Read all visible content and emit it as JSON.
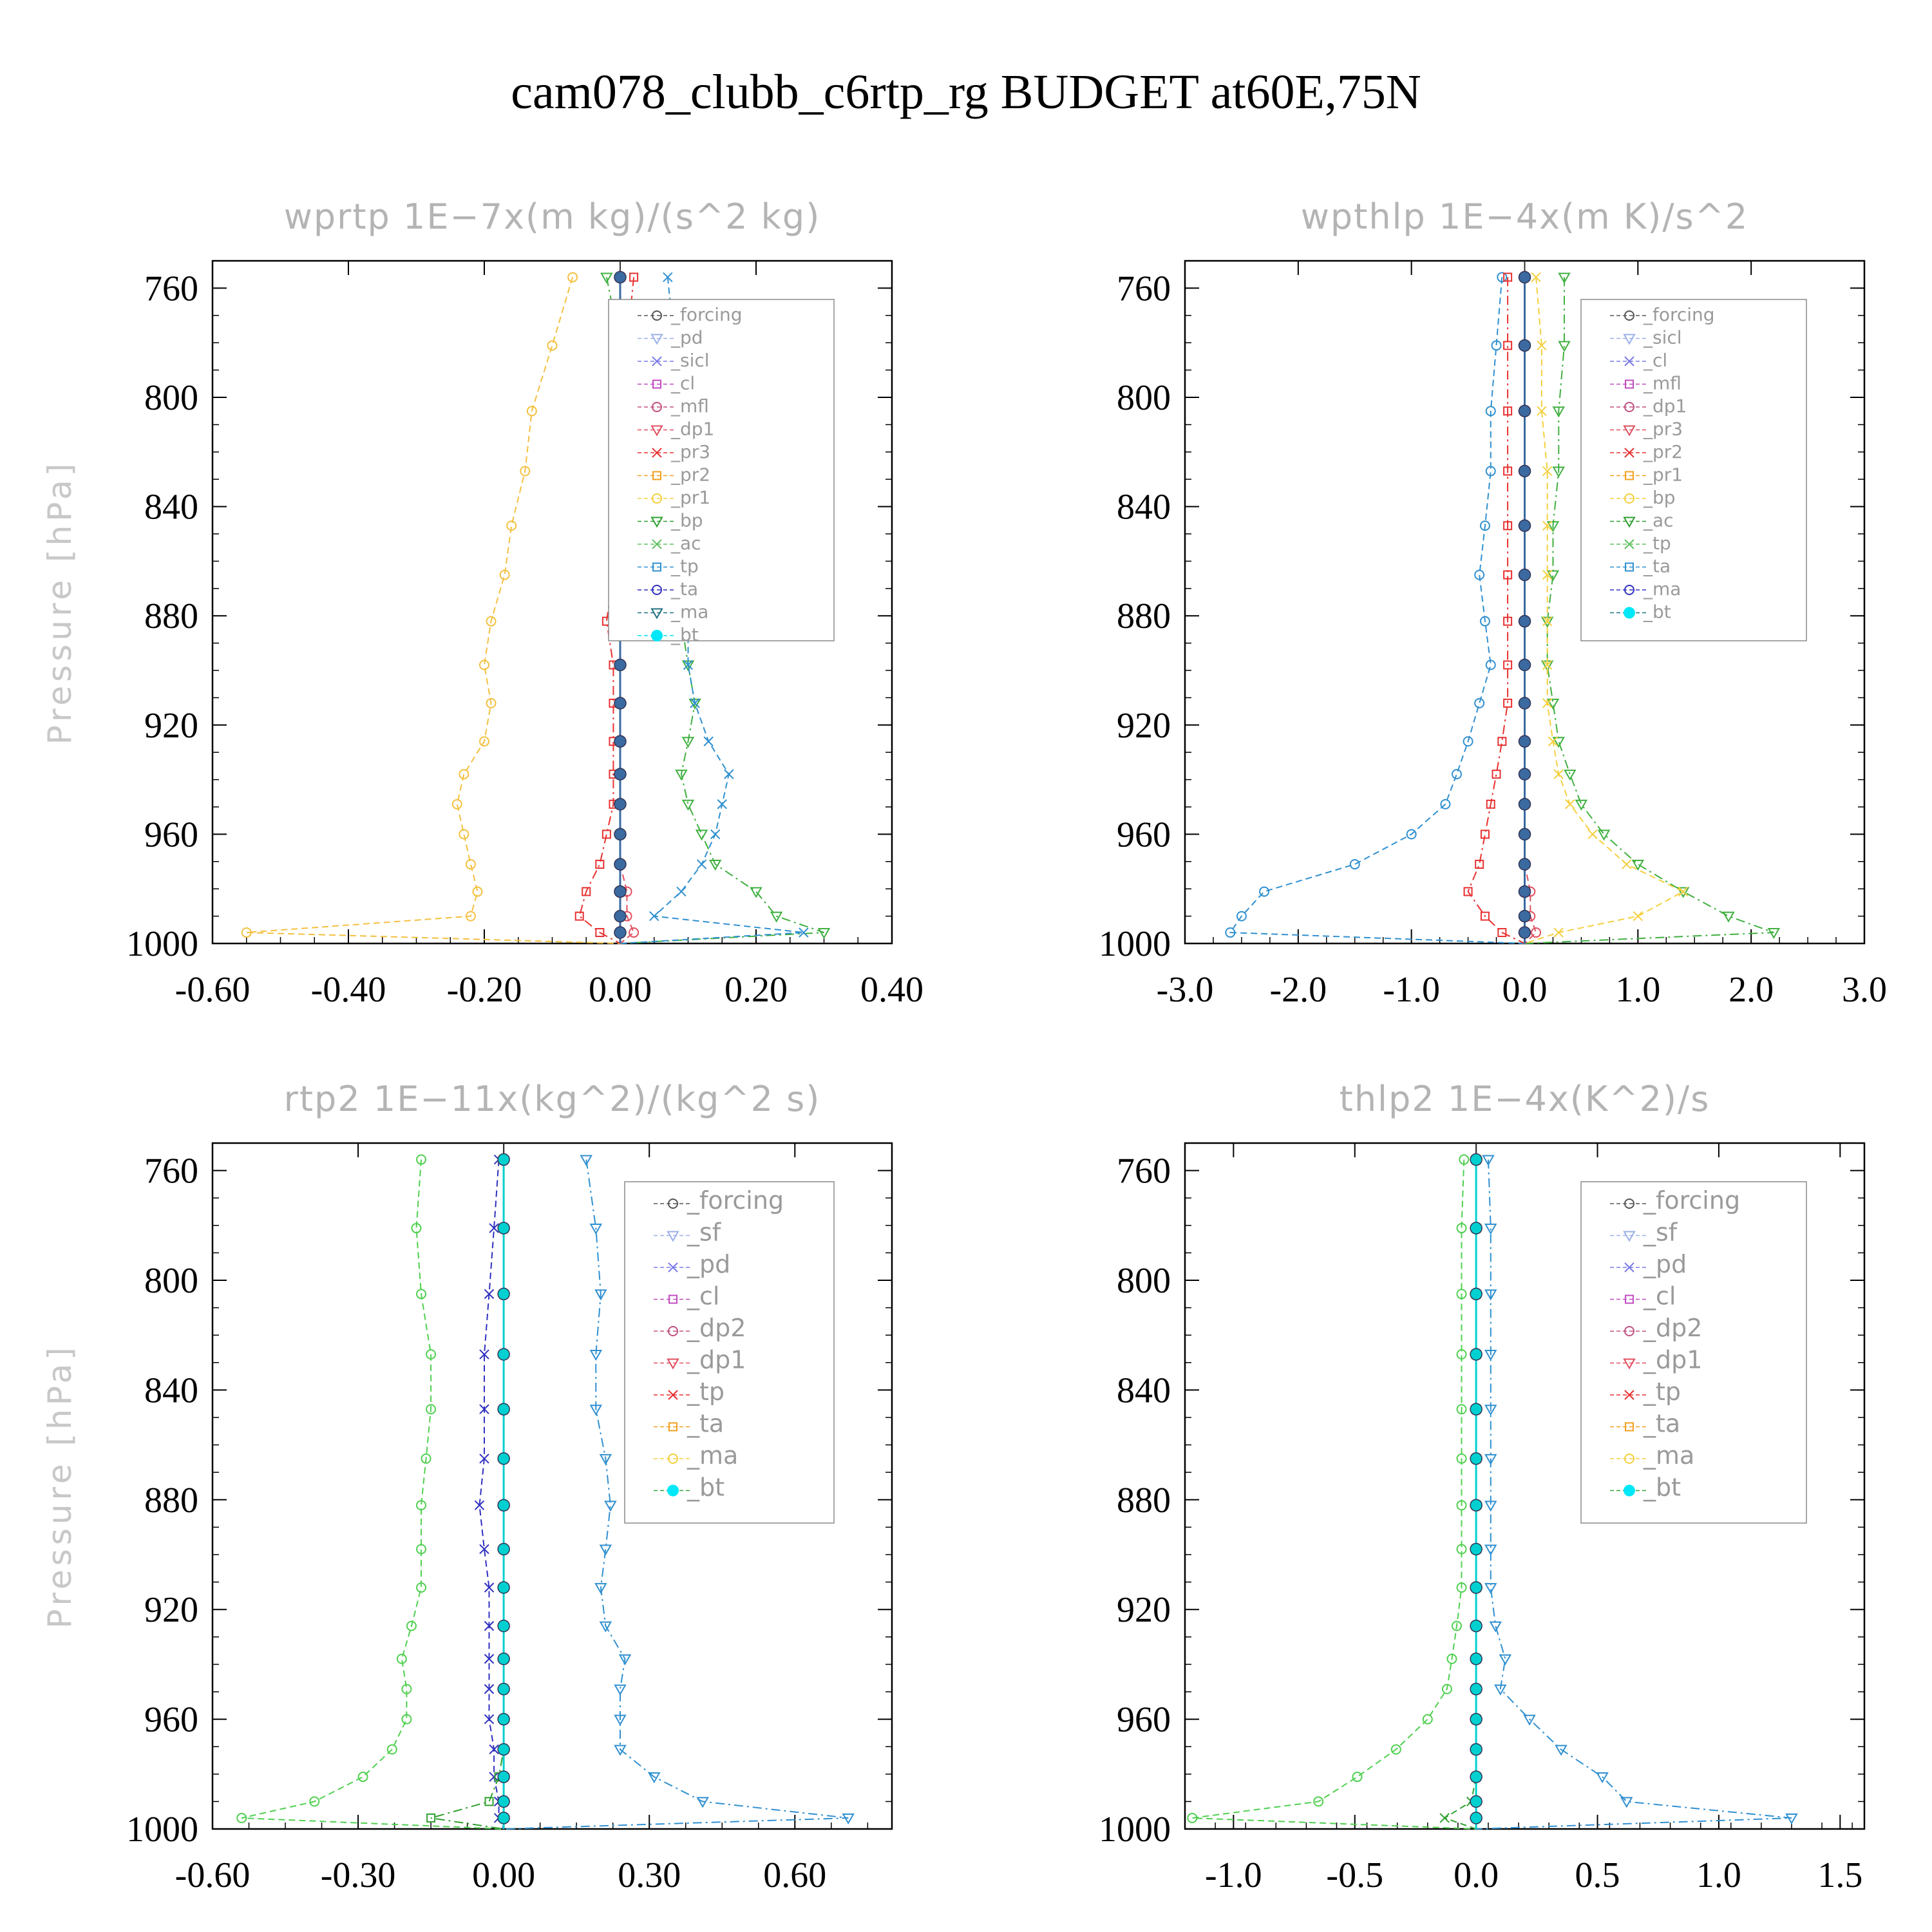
{
  "page_title": "cam078_clubb_c6rtp_rg  BUDGET at60E,75N",
  "colors": {
    "forcing": "#555555",
    "pd": "#9ab0e8",
    "sicl": "#7a7ae8",
    "cl": "#c04cc0",
    "mfl": "#c05080",
    "dp1": "#e05060",
    "pr3": "#e83030",
    "pr2": "#f0a020",
    "pr1": "#f4d040",
    "bp": "#30a030",
    "ac": "#60c060",
    "tp": "#3090d0",
    "ta": "#3030c0",
    "ma": "#207080",
    "bt": "#00e0f0",
    "sf": "#e83030",
    "dp2": "#30a030",
    "dp1b": "#60e060",
    "cl2": "#f4d040",
    "pd2": "#f0a020"
  },
  "chart_data": [
    {
      "type": "line",
      "title": "wprtp   1E−7x(m kg)/(s^2 kg)",
      "ylabel": "Pressure [hPa]",
      "xlim": [
        -0.6,
        0.4
      ],
      "xticks": [
        "-0.60",
        "-0.40",
        "-0.20",
        "0.00",
        "0.20",
        "0.40"
      ],
      "xtick_values": [
        -0.6,
        -0.4,
        -0.2,
        0.0,
        0.2,
        0.4
      ],
      "ylim": [
        750,
        1000
      ],
      "yticks": [
        "760",
        "800",
        "840",
        "880",
        "920",
        "960",
        "1000"
      ],
      "yticks_values": [
        760,
        800,
        840,
        880,
        920,
        960,
        1000
      ],
      "levels": [
        756,
        781,
        805,
        827,
        847,
        865,
        882,
        898,
        912,
        926,
        938,
        949,
        960,
        971,
        981,
        990,
        996,
        1000
      ],
      "legend": [
        "_forcing",
        "_pd",
        "_sicl",
        "_cl",
        "_mfl",
        "_dp1",
        "_pr3",
        "_pr2",
        "_pr1",
        "_bp",
        "_ac",
        "_tp",
        "_ta",
        "_ma",
        "_bt"
      ],
      "series": [
        {
          "name": "_pr2",
          "color": "#f4c040",
          "x": [
            -0.07,
            -0.1,
            -0.13,
            -0.14,
            -0.16,
            -0.17,
            -0.19,
            -0.2,
            -0.19,
            -0.2,
            -0.23,
            -0.24,
            -0.23,
            -0.22,
            -0.21,
            -0.22,
            -0.55,
            0.0
          ]
        },
        {
          "name": "_bp",
          "color": "#40b040",
          "x": [
            -0.02,
            0.0,
            0.02,
            0.04,
            0.06,
            0.08,
            0.09,
            0.1,
            0.11,
            0.1,
            0.09,
            0.1,
            0.12,
            0.14,
            0.2,
            0.23,
            0.3,
            0.0
          ]
        },
        {
          "name": "_tp",
          "color": "#3090d0",
          "x": [
            0.07,
            0.08,
            0.08,
            0.08,
            0.09,
            0.1,
            0.1,
            0.1,
            0.11,
            0.13,
            0.16,
            0.15,
            0.14,
            0.12,
            0.09,
            0.05,
            0.27,
            0.0
          ]
        },
        {
          "name": "_pr3",
          "color": "#e83030",
          "x": [
            0.02,
            0.01,
            0.0,
            0.0,
            -0.01,
            -0.01,
            -0.02,
            -0.01,
            -0.01,
            -0.01,
            -0.01,
            -0.01,
            -0.02,
            -0.03,
            -0.05,
            -0.06,
            -0.03,
            0.0
          ]
        },
        {
          "name": "_dp1",
          "color": "#e05060",
          "x": [
            0.0,
            0.0,
            0.0,
            0.0,
            0.0,
            0.0,
            0.0,
            0.0,
            0.0,
            0.0,
            0.0,
            0.0,
            0.0,
            0.0,
            0.01,
            0.01,
            0.02,
            0.0
          ]
        },
        {
          "name": "_bt",
          "color": "#3a6aa0",
          "x": [
            0,
            0,
            0,
            0,
            0,
            0,
            0,
            0,
            0,
            0,
            0,
            0,
            0,
            0,
            0,
            0,
            0,
            0
          ]
        }
      ]
    },
    {
      "type": "line",
      "title": "wpthlp   1E−4x(m K)/s^2",
      "ylabel": "Pressure [hPa]",
      "xlim": [
        -3.0,
        3.0
      ],
      "xticks": [
        "-3.0",
        "-2.0",
        "-1.0",
        "0.0",
        "1.0",
        "2.0",
        "3.0"
      ],
      "xtick_values": [
        -3.0,
        -2.0,
        -1.0,
        0.0,
        1.0,
        2.0,
        3.0
      ],
      "ylim": [
        750,
        1000
      ],
      "yticks": [
        "760",
        "800",
        "840",
        "880",
        "920",
        "960",
        "1000"
      ],
      "yticks_values": [
        760,
        800,
        840,
        880,
        920,
        960,
        1000
      ],
      "levels": [
        756,
        781,
        805,
        827,
        847,
        865,
        882,
        898,
        912,
        926,
        938,
        949,
        960,
        971,
        981,
        990,
        996,
        1000
      ],
      "legend": [
        "_forcing",
        "_sicl",
        "_cl",
        "_mfl",
        "_dp1",
        "_pr3",
        "_pr2",
        "_pr1",
        "_bp",
        "_ac",
        "_tp",
        "_ta",
        "_ma",
        "_bt"
      ],
      "series": [
        {
          "name": "_tp",
          "color": "#3090d0",
          "x": [
            -0.2,
            -0.25,
            -0.3,
            -0.3,
            -0.35,
            -0.4,
            -0.35,
            -0.3,
            -0.4,
            -0.5,
            -0.6,
            -0.7,
            -1.0,
            -1.5,
            -2.3,
            -2.5,
            -2.6,
            0.0
          ]
        },
        {
          "name": "_bp",
          "color": "#40b040",
          "x": [
            0.35,
            0.35,
            0.3,
            0.3,
            0.25,
            0.25,
            0.2,
            0.2,
            0.25,
            0.3,
            0.4,
            0.5,
            0.7,
            1.0,
            1.4,
            1.8,
            2.2,
            0.0
          ]
        },
        {
          "name": "_pr1",
          "color": "#f4d040",
          "x": [
            0.1,
            0.15,
            0.15,
            0.2,
            0.2,
            0.2,
            0.2,
            0.2,
            0.2,
            0.25,
            0.3,
            0.4,
            0.6,
            0.9,
            1.4,
            1.0,
            0.3,
            0.0
          ]
        },
        {
          "name": "_pr3",
          "color": "#e83030",
          "x": [
            -0.15,
            -0.15,
            -0.15,
            -0.15,
            -0.15,
            -0.15,
            -0.15,
            -0.15,
            -0.15,
            -0.2,
            -0.25,
            -0.3,
            -0.35,
            -0.4,
            -0.5,
            -0.35,
            -0.2,
            0.0
          ]
        },
        {
          "name": "_dp1",
          "color": "#e05060",
          "x": [
            0,
            0,
            0,
            0,
            0,
            0,
            0,
            0,
            0,
            0,
            0,
            0,
            0,
            0,
            0.05,
            0.05,
            0.1,
            0.0
          ]
        },
        {
          "name": "_bt",
          "color": "#3a6aa0",
          "x": [
            0,
            0,
            0,
            0,
            0,
            0,
            0,
            0,
            0,
            0,
            0,
            0,
            0,
            0,
            0,
            0,
            0,
            0
          ]
        }
      ]
    },
    {
      "type": "line",
      "title": "rtp2   1E−11x(kg^2)/(kg^2 s)",
      "ylabel": "Pressure [hPa]",
      "xlim": [
        -0.6,
        0.8
      ],
      "xticks": [
        "-0.60",
        "-0.30",
        "0.00",
        "0.30",
        "0.60"
      ],
      "xtick_values": [
        -0.6,
        -0.3,
        0.0,
        0.3,
        0.6
      ],
      "ylim": [
        750,
        1000
      ],
      "yticks": [
        "760",
        "800",
        "840",
        "880",
        "920",
        "960",
        "1000"
      ],
      "yticks_values": [
        760,
        800,
        840,
        880,
        920,
        960,
        1000
      ],
      "levels": [
        756,
        781,
        805,
        827,
        847,
        865,
        882,
        898,
        912,
        926,
        938,
        949,
        960,
        971,
        981,
        990,
        996,
        1000
      ],
      "legend": [
        "_forcing",
        "_sf",
        "_pd",
        "_cl",
        "_dp2",
        "_dp1",
        "_tp",
        "_ta",
        "_ma",
        "_bt"
      ],
      "series": [
        {
          "name": "_dp1",
          "color": "#50d050",
          "x": [
            -0.17,
            -0.18,
            -0.17,
            -0.15,
            -0.15,
            -0.16,
            -0.17,
            -0.17,
            -0.17,
            -0.19,
            -0.21,
            -0.2,
            -0.2,
            -0.23,
            -0.29,
            -0.39,
            -0.54,
            0.0
          ]
        },
        {
          "name": "_tp",
          "color": "#3090d0",
          "x": [
            0.17,
            0.19,
            0.2,
            0.19,
            0.19,
            0.21,
            0.22,
            0.21,
            0.2,
            0.21,
            0.25,
            0.24,
            0.24,
            0.24,
            0.31,
            0.41,
            0.71,
            0.0
          ]
        },
        {
          "name": "_ta",
          "color": "#3030c0",
          "x": [
            -0.01,
            -0.02,
            -0.03,
            -0.04,
            -0.04,
            -0.04,
            -0.05,
            -0.04,
            -0.03,
            -0.03,
            -0.03,
            -0.03,
            -0.03,
            -0.02,
            -0.02,
            -0.01,
            -0.01,
            0.0
          ]
        },
        {
          "name": "_dp2",
          "color": "#30a030",
          "x": [
            0,
            0,
            0,
            0,
            0,
            0,
            0,
            0,
            0,
            0,
            0,
            0,
            0,
            0,
            -0.01,
            -0.03,
            -0.15,
            0.0
          ]
        },
        {
          "name": "_bt",
          "color": "#00d0d0",
          "x": [
            0,
            0,
            0,
            0,
            0,
            0,
            0,
            0,
            0,
            0,
            0,
            0,
            0,
            0,
            0,
            0,
            0,
            0
          ]
        }
      ]
    },
    {
      "type": "line",
      "title": "thlp2   1E−4x(K^2)/s",
      "ylabel": "Pressure [hPa]",
      "xlim": [
        -1.2,
        1.6
      ],
      "xticks": [
        "-1.0",
        "-0.5",
        "0.0",
        "0.5",
        "1.0",
        "1.5"
      ],
      "xtick_values": [
        -1.0,
        -0.5,
        0.0,
        0.5,
        1.0,
        1.5
      ],
      "ylim": [
        750,
        1000
      ],
      "yticks": [
        "760",
        "800",
        "840",
        "880",
        "920",
        "960",
        "1000"
      ],
      "yticks_values": [
        760,
        800,
        840,
        880,
        920,
        960,
        1000
      ],
      "levels": [
        756,
        781,
        805,
        827,
        847,
        865,
        882,
        898,
        912,
        926,
        938,
        949,
        960,
        971,
        981,
        990,
        996,
        1000
      ],
      "legend": [
        "_forcing",
        "_sf",
        "_pd",
        "_cl",
        "_dp2",
        "_dp1",
        "_tp",
        "_ta",
        "_ma",
        "_bt"
      ],
      "series": [
        {
          "name": "_dp1",
          "color": "#50d050",
          "x": [
            -0.05,
            -0.06,
            -0.06,
            -0.06,
            -0.06,
            -0.06,
            -0.06,
            -0.06,
            -0.06,
            -0.08,
            -0.1,
            -0.12,
            -0.2,
            -0.33,
            -0.49,
            -0.65,
            -1.17,
            0.0
          ]
        },
        {
          "name": "_tp",
          "color": "#3090d0",
          "x": [
            0.05,
            0.06,
            0.06,
            0.06,
            0.06,
            0.06,
            0.06,
            0.06,
            0.06,
            0.08,
            0.12,
            0.1,
            0.22,
            0.35,
            0.52,
            0.62,
            1.3,
            0.0
          ]
        },
        {
          "name": "_dp2",
          "color": "#30a030",
          "x": [
            0,
            0,
            0,
            0,
            0,
            0,
            0,
            0,
            0,
            0,
            0,
            0,
            0,
            0,
            0,
            -0.02,
            -0.13,
            0.0
          ]
        },
        {
          "name": "_bt",
          "color": "#00d0d0",
          "x": [
            0,
            0,
            0,
            0,
            0,
            0,
            0,
            0,
            0,
            0,
            0,
            0,
            0,
            0,
            0,
            0,
            0,
            0
          ]
        }
      ]
    }
  ]
}
